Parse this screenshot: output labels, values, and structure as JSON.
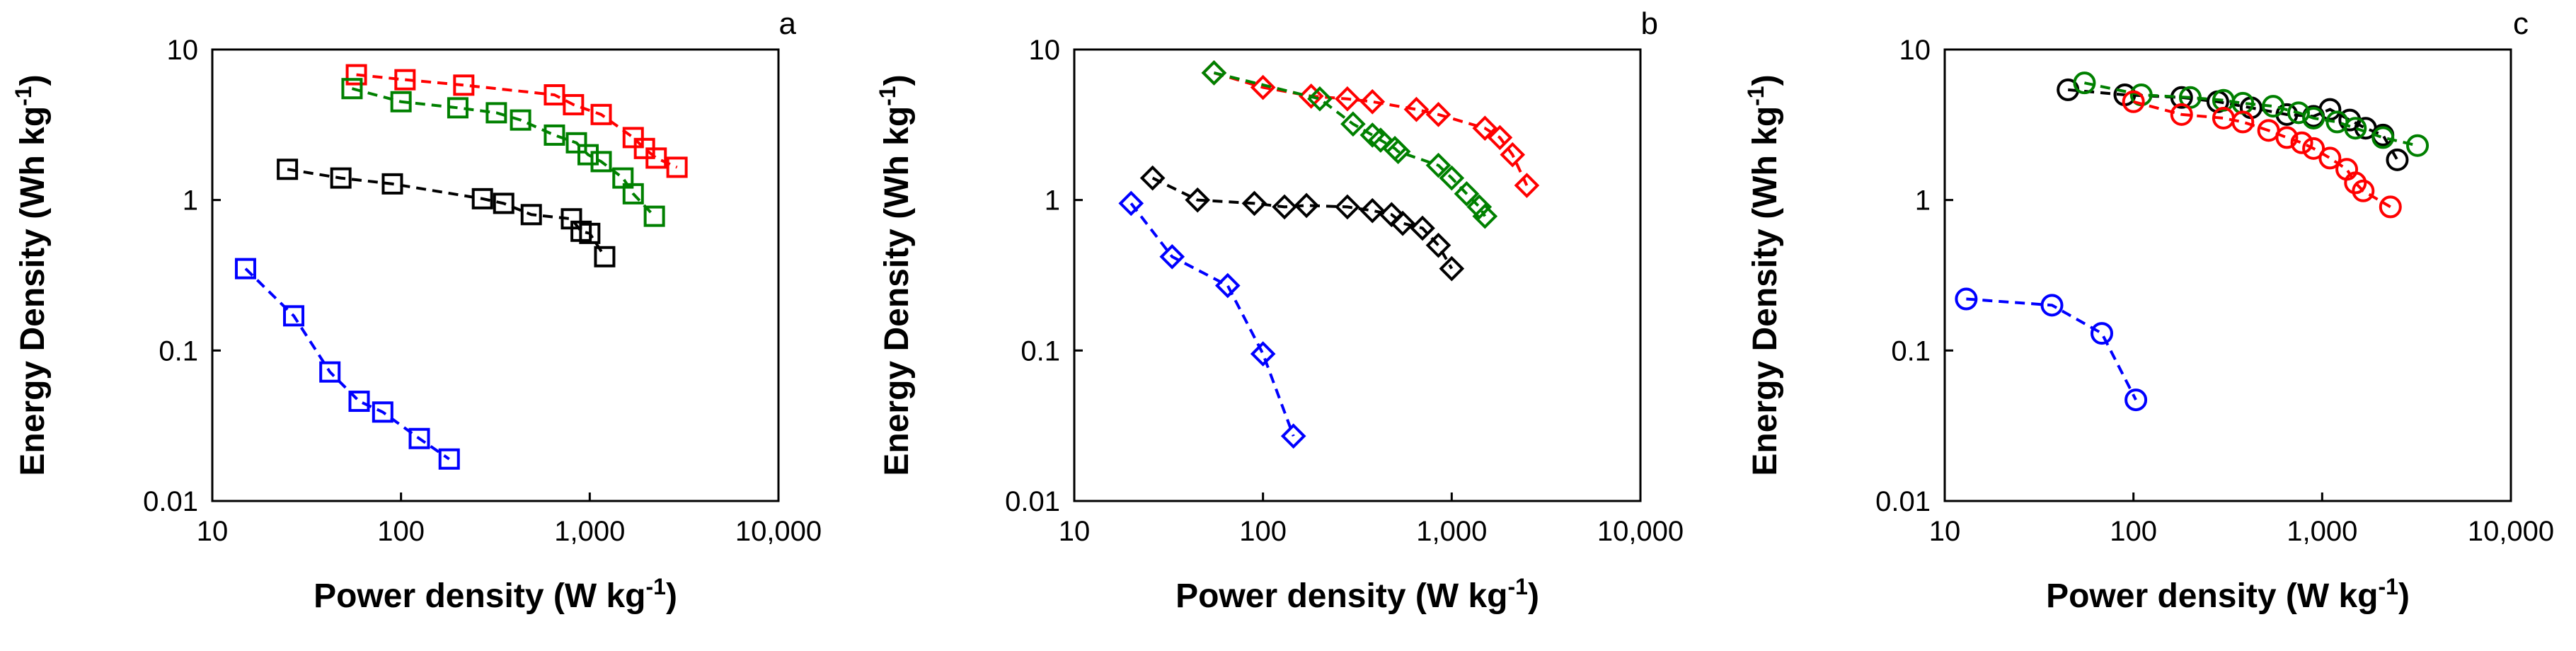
{
  "chart_data": [
    {
      "type": "scatter",
      "panel": "a",
      "marker": "square",
      "xlabel": "Power density (W kg-1)",
      "ylabel": "Energy Density (Wh kg-1)",
      "xscale": "log",
      "yscale": "log",
      "xlim": [
        10,
        10000
      ],
      "ylim": [
        0.01,
        10
      ],
      "xticks": [
        "10",
        "100",
        "1,000",
        "10,000"
      ],
      "yticks": [
        "0.01",
        "0.1",
        "1",
        "10"
      ],
      "series": [
        {
          "name": "red",
          "color": "#ff0000",
          "x": [
            58,
            105,
            215,
            650,
            820,
            1150,
            1700,
            1950,
            2250,
            2900
          ],
          "y": [
            6.8,
            6.3,
            5.8,
            5.0,
            4.3,
            3.7,
            2.6,
            2.2,
            1.9,
            1.65
          ]
        },
        {
          "name": "green",
          "color": "#008000",
          "x": [
            55,
            100,
            200,
            320,
            430,
            650,
            850,
            980,
            1150,
            1500,
            1700,
            2200
          ],
          "y": [
            5.5,
            4.5,
            4.1,
            3.8,
            3.4,
            2.7,
            2.4,
            2.0,
            1.8,
            1.4,
            1.1,
            0.78
          ]
        },
        {
          "name": "black",
          "color": "#000000",
          "x": [
            25,
            48,
            90,
            270,
            350,
            490,
            800,
            900,
            1000,
            1200
          ],
          "y": [
            1.6,
            1.4,
            1.28,
            1.02,
            0.95,
            0.8,
            0.75,
            0.62,
            0.6,
            0.42
          ]
        },
        {
          "name": "blue",
          "color": "#0000ff",
          "x": [
            15,
            27,
            42,
            60,
            80,
            125,
            180
          ],
          "y": [
            0.35,
            0.17,
            0.072,
            0.046,
            0.039,
            0.026,
            0.019
          ]
        }
      ]
    },
    {
      "type": "scatter",
      "panel": "b",
      "marker": "diamond",
      "xlabel": "Power density (W kg-1)",
      "ylabel": "Energy Density (Wh kg-1)",
      "xscale": "log",
      "yscale": "log",
      "xlim": [
        10,
        10000
      ],
      "ylim": [
        0.01,
        10
      ],
      "xticks": [
        "10",
        "100",
        "1,000",
        "10,000"
      ],
      "yticks": [
        "0.01",
        "0.1",
        "1",
        "10"
      ],
      "series": [
        {
          "name": "red",
          "color": "#ff0000",
          "x": [
            55,
            100,
            180,
            280,
            380,
            650,
            850,
            1500,
            1800,
            2100,
            2500
          ],
          "y": [
            7.0,
            5.6,
            4.9,
            4.7,
            4.5,
            4.0,
            3.7,
            3.0,
            2.6,
            2.0,
            1.25
          ]
        },
        {
          "name": "green",
          "color": "#008000",
          "x": [
            55,
            200,
            300,
            380,
            420,
            500,
            520,
            850,
            1000,
            1200,
            1400,
            1500
          ],
          "y": [
            7.0,
            4.7,
            3.2,
            2.7,
            2.5,
            2.2,
            2.1,
            1.7,
            1.4,
            1.1,
            0.9,
            0.78
          ]
        },
        {
          "name": "black",
          "color": "#000000",
          "x": [
            26,
            45,
            90,
            130,
            170,
            280,
            380,
            480,
            550,
            700,
            850,
            1000
          ],
          "y": [
            1.4,
            1.0,
            0.95,
            0.9,
            0.92,
            0.9,
            0.85,
            0.8,
            0.7,
            0.65,
            0.5,
            0.35
          ]
        },
        {
          "name": "blue",
          "color": "#0000ff",
          "x": [
            20,
            33,
            65,
            100,
            145
          ],
          "y": [
            0.95,
            0.42,
            0.27,
            0.095,
            0.027
          ]
        }
      ]
    },
    {
      "type": "scatter",
      "panel": "c",
      "marker": "circle",
      "xlabel": "Power density (W kg-1)",
      "ylabel": "Energy Density (Wh kg-1)",
      "xscale": "log",
      "yscale": "log",
      "xlim": [
        10,
        10000
      ],
      "ylim": [
        0.01,
        10
      ],
      "xticks": [
        "10",
        "100",
        "1,000",
        "10,000"
      ],
      "yticks": [
        "0.01",
        "0.1",
        "1",
        "10"
      ],
      "series": [
        {
          "name": "black",
          "color": "#000000",
          "x": [
            45,
            90,
            180,
            280,
            420,
            650,
            900,
            1100,
            1400,
            1700,
            2100,
            2500
          ],
          "y": [
            5.4,
            5.0,
            4.8,
            4.5,
            4.1,
            3.7,
            3.6,
            4.0,
            3.4,
            3.0,
            2.7,
            1.85
          ]
        },
        {
          "name": "green",
          "color": "#008000",
          "x": [
            55,
            110,
            200,
            300,
            380,
            550,
            750,
            900,
            1200,
            1500,
            2100,
            3200
          ],
          "y": [
            6.0,
            5.0,
            4.8,
            4.6,
            4.4,
            4.2,
            3.8,
            3.5,
            3.3,
            3.0,
            2.6,
            2.3
          ]
        },
        {
          "name": "red",
          "color": "#ff0000",
          "x": [
            100,
            180,
            300,
            380,
            520,
            650,
            780,
            900,
            1100,
            1350,
            1500,
            1650,
            2300
          ],
          "y": [
            4.5,
            3.7,
            3.5,
            3.3,
            2.9,
            2.6,
            2.4,
            2.2,
            1.9,
            1.6,
            1.3,
            1.15,
            0.9
          ]
        },
        {
          "name": "blue",
          "color": "#0000ff",
          "x": [
            13,
            37,
            68,
            103
          ],
          "y": [
            0.22,
            0.2,
            0.13,
            0.047
          ]
        }
      ]
    }
  ]
}
